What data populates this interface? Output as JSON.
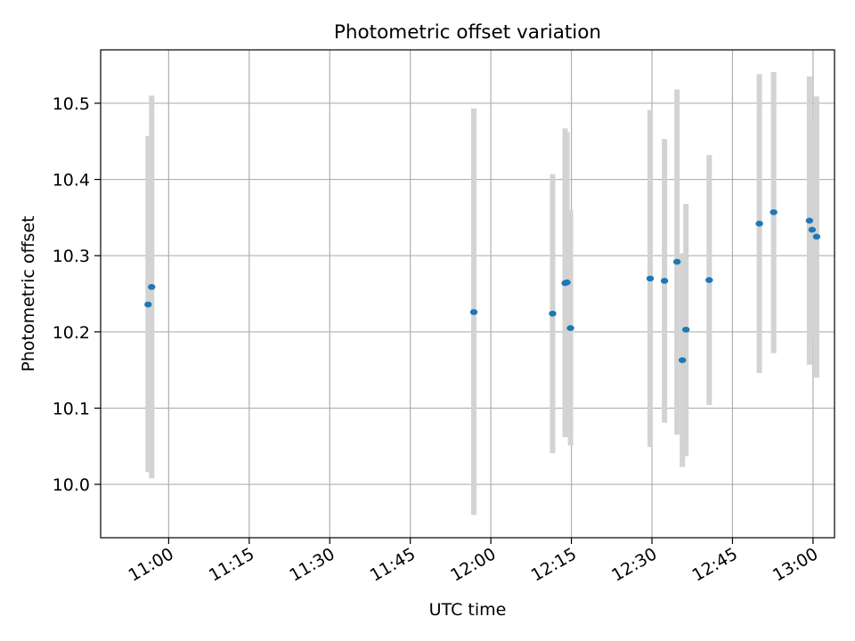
{
  "chart_data": {
    "type": "scatter",
    "title": "Photometric offset variation",
    "xlabel": "UTC time",
    "ylabel": "Photometric offset",
    "x_ticks": [
      "11:00",
      "11:15",
      "11:30",
      "11:45",
      "12:00",
      "12:15",
      "12:30",
      "12:45",
      "13:00"
    ],
    "y_ticks": [
      "10.0",
      "10.1",
      "10.2",
      "10.3",
      "10.4",
      "10.5"
    ],
    "xlim": [
      "10:47:20",
      "13:04:00"
    ],
    "ylim": [
      9.93,
      10.57
    ],
    "grid": true,
    "marker_color": "#1f77b4",
    "errorbar_color": "#d3d3d3",
    "points": [
      {
        "x": "10:56:10",
        "y": 10.236,
        "err_low": 10.016,
        "err_high": 10.457
      },
      {
        "x": "10:56:50",
        "y": 10.259,
        "err_low": 10.008,
        "err_high": 10.51
      },
      {
        "x": "11:56:50",
        "y": 10.226,
        "err_low": 9.96,
        "err_high": 10.493
      },
      {
        "x": "12:11:30",
        "y": 10.224,
        "err_low": 10.041,
        "err_high": 10.407
      },
      {
        "x": "12:13:50",
        "y": 10.264,
        "err_low": 10.062,
        "err_high": 10.467
      },
      {
        "x": "12:14:10",
        "y": 10.265,
        "err_low": 10.067,
        "err_high": 10.462
      },
      {
        "x": "12:14:50",
        "y": 10.205,
        "err_low": 10.051,
        "err_high": 10.36
      },
      {
        "x": "12:29:40",
        "y": 10.27,
        "err_low": 10.049,
        "err_high": 10.491
      },
      {
        "x": "12:32:20",
        "y": 10.267,
        "err_low": 10.081,
        "err_high": 10.453
      },
      {
        "x": "12:34:40",
        "y": 10.292,
        "err_low": 10.065,
        "err_high": 10.518
      },
      {
        "x": "12:35:40",
        "y": 10.163,
        "err_low": 10.023,
        "err_high": 10.303
      },
      {
        "x": "12:36:20",
        "y": 10.203,
        "err_low": 10.037,
        "err_high": 10.368
      },
      {
        "x": "12:40:40",
        "y": 10.268,
        "err_low": 10.104,
        "err_high": 10.432
      },
      {
        "x": "12:50:00",
        "y": 10.342,
        "err_low": 10.146,
        "err_high": 10.538
      },
      {
        "x": "12:52:40",
        "y": 10.357,
        "err_low": 10.172,
        "err_high": 10.541
      },
      {
        "x": "12:59:20",
        "y": 10.346,
        "err_low": 10.157,
        "err_high": 10.535
      },
      {
        "x": "12:59:50",
        "y": 10.334,
        "err_low": 10.193,
        "err_high": 10.475
      },
      {
        "x": "13:00:40",
        "y": 10.325,
        "err_low": 10.14,
        "err_high": 10.509
      }
    ]
  }
}
